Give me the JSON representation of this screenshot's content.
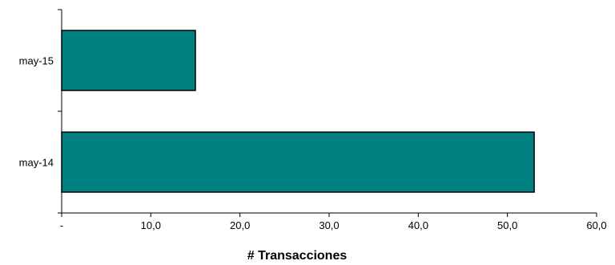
{
  "chart_data": {
    "type": "bar",
    "orientation": "horizontal",
    "categories": [
      "may-15",
      "may-14"
    ],
    "values": [
      15.0,
      53.0
    ],
    "xlabel": "# Transacciones",
    "xlim": [
      0,
      60
    ],
    "x_ticks": [
      0,
      10,
      20,
      30,
      40,
      50,
      60
    ],
    "x_tick_labels": [
      "-",
      "10,0",
      "20,0",
      "30,0",
      "40,0",
      "50,0",
      "60,0"
    ],
    "grid": false,
    "legend": "none",
    "bar_color": "#008080",
    "bar_stroke": "#000000"
  }
}
